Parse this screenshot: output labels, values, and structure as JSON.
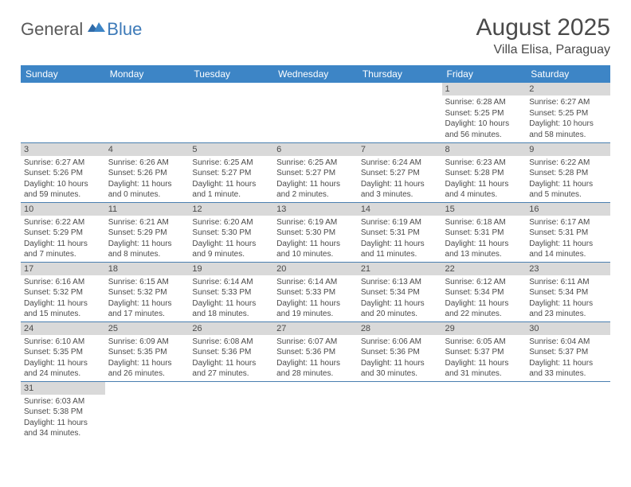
{
  "logo": {
    "general": "General",
    "blue": "Blue"
  },
  "title": "August 2025",
  "location": "Villa Elisa, Paraguay",
  "colors": {
    "header_bg": "#3d85c6",
    "header_text": "#ffffff",
    "daynum_bg": "#d9d9d9",
    "row_border": "#4a7fb0",
    "text": "#4a4a4a",
    "logo_blue": "#3d7ab8"
  },
  "weekdays": [
    "Sunday",
    "Monday",
    "Tuesday",
    "Wednesday",
    "Thursday",
    "Friday",
    "Saturday"
  ],
  "weeks": [
    [
      null,
      null,
      null,
      null,
      null,
      {
        "n": "1",
        "sunrise": "Sunrise: 6:28 AM",
        "sunset": "Sunset: 5:25 PM",
        "daylight": "Daylight: 10 hours and 56 minutes."
      },
      {
        "n": "2",
        "sunrise": "Sunrise: 6:27 AM",
        "sunset": "Sunset: 5:25 PM",
        "daylight": "Daylight: 10 hours and 58 minutes."
      }
    ],
    [
      {
        "n": "3",
        "sunrise": "Sunrise: 6:27 AM",
        "sunset": "Sunset: 5:26 PM",
        "daylight": "Daylight: 10 hours and 59 minutes."
      },
      {
        "n": "4",
        "sunrise": "Sunrise: 6:26 AM",
        "sunset": "Sunset: 5:26 PM",
        "daylight": "Daylight: 11 hours and 0 minutes."
      },
      {
        "n": "5",
        "sunrise": "Sunrise: 6:25 AM",
        "sunset": "Sunset: 5:27 PM",
        "daylight": "Daylight: 11 hours and 1 minute."
      },
      {
        "n": "6",
        "sunrise": "Sunrise: 6:25 AM",
        "sunset": "Sunset: 5:27 PM",
        "daylight": "Daylight: 11 hours and 2 minutes."
      },
      {
        "n": "7",
        "sunrise": "Sunrise: 6:24 AM",
        "sunset": "Sunset: 5:27 PM",
        "daylight": "Daylight: 11 hours and 3 minutes."
      },
      {
        "n": "8",
        "sunrise": "Sunrise: 6:23 AM",
        "sunset": "Sunset: 5:28 PM",
        "daylight": "Daylight: 11 hours and 4 minutes."
      },
      {
        "n": "9",
        "sunrise": "Sunrise: 6:22 AM",
        "sunset": "Sunset: 5:28 PM",
        "daylight": "Daylight: 11 hours and 5 minutes."
      }
    ],
    [
      {
        "n": "10",
        "sunrise": "Sunrise: 6:22 AM",
        "sunset": "Sunset: 5:29 PM",
        "daylight": "Daylight: 11 hours and 7 minutes."
      },
      {
        "n": "11",
        "sunrise": "Sunrise: 6:21 AM",
        "sunset": "Sunset: 5:29 PM",
        "daylight": "Daylight: 11 hours and 8 minutes."
      },
      {
        "n": "12",
        "sunrise": "Sunrise: 6:20 AM",
        "sunset": "Sunset: 5:30 PM",
        "daylight": "Daylight: 11 hours and 9 minutes."
      },
      {
        "n": "13",
        "sunrise": "Sunrise: 6:19 AM",
        "sunset": "Sunset: 5:30 PM",
        "daylight": "Daylight: 11 hours and 10 minutes."
      },
      {
        "n": "14",
        "sunrise": "Sunrise: 6:19 AM",
        "sunset": "Sunset: 5:31 PM",
        "daylight": "Daylight: 11 hours and 11 minutes."
      },
      {
        "n": "15",
        "sunrise": "Sunrise: 6:18 AM",
        "sunset": "Sunset: 5:31 PM",
        "daylight": "Daylight: 11 hours and 13 minutes."
      },
      {
        "n": "16",
        "sunrise": "Sunrise: 6:17 AM",
        "sunset": "Sunset: 5:31 PM",
        "daylight": "Daylight: 11 hours and 14 minutes."
      }
    ],
    [
      {
        "n": "17",
        "sunrise": "Sunrise: 6:16 AM",
        "sunset": "Sunset: 5:32 PM",
        "daylight": "Daylight: 11 hours and 15 minutes."
      },
      {
        "n": "18",
        "sunrise": "Sunrise: 6:15 AM",
        "sunset": "Sunset: 5:32 PM",
        "daylight": "Daylight: 11 hours and 17 minutes."
      },
      {
        "n": "19",
        "sunrise": "Sunrise: 6:14 AM",
        "sunset": "Sunset: 5:33 PM",
        "daylight": "Daylight: 11 hours and 18 minutes."
      },
      {
        "n": "20",
        "sunrise": "Sunrise: 6:14 AM",
        "sunset": "Sunset: 5:33 PM",
        "daylight": "Daylight: 11 hours and 19 minutes."
      },
      {
        "n": "21",
        "sunrise": "Sunrise: 6:13 AM",
        "sunset": "Sunset: 5:34 PM",
        "daylight": "Daylight: 11 hours and 20 minutes."
      },
      {
        "n": "22",
        "sunrise": "Sunrise: 6:12 AM",
        "sunset": "Sunset: 5:34 PM",
        "daylight": "Daylight: 11 hours and 22 minutes."
      },
      {
        "n": "23",
        "sunrise": "Sunrise: 6:11 AM",
        "sunset": "Sunset: 5:34 PM",
        "daylight": "Daylight: 11 hours and 23 minutes."
      }
    ],
    [
      {
        "n": "24",
        "sunrise": "Sunrise: 6:10 AM",
        "sunset": "Sunset: 5:35 PM",
        "daylight": "Daylight: 11 hours and 24 minutes."
      },
      {
        "n": "25",
        "sunrise": "Sunrise: 6:09 AM",
        "sunset": "Sunset: 5:35 PM",
        "daylight": "Daylight: 11 hours and 26 minutes."
      },
      {
        "n": "26",
        "sunrise": "Sunrise: 6:08 AM",
        "sunset": "Sunset: 5:36 PM",
        "daylight": "Daylight: 11 hours and 27 minutes."
      },
      {
        "n": "27",
        "sunrise": "Sunrise: 6:07 AM",
        "sunset": "Sunset: 5:36 PM",
        "daylight": "Daylight: 11 hours and 28 minutes."
      },
      {
        "n": "28",
        "sunrise": "Sunrise: 6:06 AM",
        "sunset": "Sunset: 5:36 PM",
        "daylight": "Daylight: 11 hours and 30 minutes."
      },
      {
        "n": "29",
        "sunrise": "Sunrise: 6:05 AM",
        "sunset": "Sunset: 5:37 PM",
        "daylight": "Daylight: 11 hours and 31 minutes."
      },
      {
        "n": "30",
        "sunrise": "Sunrise: 6:04 AM",
        "sunset": "Sunset: 5:37 PM",
        "daylight": "Daylight: 11 hours and 33 minutes."
      }
    ],
    [
      {
        "n": "31",
        "sunrise": "Sunrise: 6:03 AM",
        "sunset": "Sunset: 5:38 PM",
        "daylight": "Daylight: 11 hours and 34 minutes."
      },
      null,
      null,
      null,
      null,
      null,
      null
    ]
  ]
}
